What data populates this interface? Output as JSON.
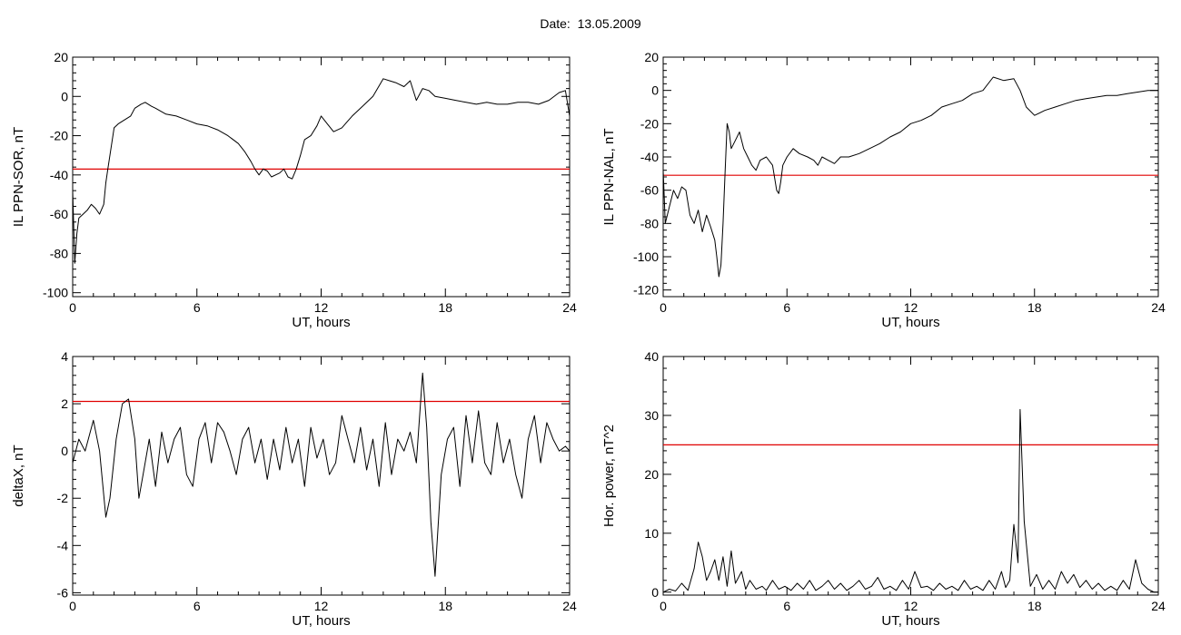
{
  "figure": {
    "title": "Date:  13.05.2009"
  },
  "colors": {
    "trace": "#000000",
    "threshold": "#e00000",
    "segment": "#1f5fd0",
    "marker_green": "#22cc22",
    "marker_red": "#dd0000",
    "marker_blue": "#2255dd"
  },
  "chart_data": [
    {
      "type": "line",
      "xlabel": "UT, hours",
      "ylabel": "IL PPN-SOR, nT",
      "xlim": [
        0,
        24
      ],
      "ylim": [
        -102,
        20
      ],
      "xticks": [
        0,
        6,
        12,
        18,
        24
      ],
      "yticks": [
        -100,
        -80,
        -60,
        -40,
        -20,
        0,
        20
      ],
      "threshold": -37,
      "series": [
        {
          "x": [
            0,
            0.1,
            0.2,
            0.3,
            0.5,
            0.7,
            0.9,
            1.1,
            1.3,
            1.5,
            1.6,
            1.7,
            1.8,
            2.0,
            2.2,
            2.5,
            2.8,
            3.0,
            3.3,
            3.5,
            3.8,
            4.0,
            4.5,
            5.0,
            5.5,
            6.0,
            6.5,
            7.0,
            7.5,
            8.0,
            8.3,
            8.6,
            8.8,
            9.0,
            9.2,
            9.4,
            9.6,
            9.8,
            10.0,
            10.2,
            10.4,
            10.6,
            10.8,
            11.0,
            11.2,
            11.5,
            11.8,
            12.0,
            12.3,
            12.6,
            13.0,
            13.5,
            14.0,
            14.5,
            15.0,
            15.3,
            15.6,
            16.0,
            16.3,
            16.6,
            16.9,
            17.2,
            17.5,
            18.0,
            18.5,
            19.0,
            19.5,
            20.0,
            20.5,
            21.0,
            21.5,
            22.0,
            22.5,
            23.0,
            23.5,
            23.8,
            24.0
          ],
          "y": [
            -48,
            -85,
            -70,
            -62,
            -60,
            -58,
            -55,
            -57,
            -60,
            -55,
            -44,
            -37,
            -30,
            -16,
            -14,
            -12,
            -10,
            -6,
            -4,
            -3,
            -5,
            -6,
            -9,
            -10,
            -12,
            -14,
            -15,
            -17,
            -20,
            -24,
            -28,
            -33,
            -37,
            -40,
            -37,
            -38,
            -41,
            -40,
            -39,
            -37,
            -41,
            -42,
            -37,
            -30,
            -22,
            -20,
            -15,
            -10,
            -14,
            -18,
            -16,
            -10,
            -5,
            0,
            9,
            8,
            7,
            5,
            8,
            -2,
            4,
            3,
            0,
            -1,
            -2,
            -3,
            -4,
            -3,
            -4,
            -4,
            -3,
            -3,
            -4,
            -2,
            2,
            3,
            -10
          ]
        }
      ]
    },
    {
      "type": "line",
      "xlabel": "UT, hours",
      "ylabel": "IL PPN-NAL, nT",
      "xlim": [
        0,
        24
      ],
      "ylim": [
        -124,
        20
      ],
      "xticks": [
        0,
        6,
        12,
        18,
        24
      ],
      "yticks": [
        -120,
        -100,
        -80,
        -60,
        -40,
        -20,
        0,
        20
      ],
      "threshold": -51,
      "series": [
        {
          "x": [
            0,
            0.1,
            0.3,
            0.5,
            0.7,
            0.9,
            1.1,
            1.3,
            1.5,
            1.7,
            1.9,
            2.1,
            2.3,
            2.5,
            2.6,
            2.7,
            2.8,
            2.9,
            3.0,
            3.1,
            3.2,
            3.3,
            3.5,
            3.7,
            3.9,
            4.1,
            4.3,
            4.5,
            4.7,
            5.0,
            5.3,
            5.5,
            5.6,
            5.7,
            5.8,
            6.0,
            6.3,
            6.6,
            7.0,
            7.3,
            7.5,
            7.7,
            8.0,
            8.3,
            8.6,
            9.0,
            9.5,
            10.0,
            10.5,
            11.0,
            11.5,
            12.0,
            12.5,
            13.0,
            13.5,
            14.0,
            14.5,
            15.0,
            15.5,
            16.0,
            16.5,
            17.0,
            17.3,
            17.6,
            18.0,
            18.5,
            19.0,
            19.5,
            20.0,
            20.5,
            21.0,
            21.5,
            22.0,
            22.5,
            23.0,
            23.5,
            24.0
          ],
          "y": [
            -48,
            -80,
            -70,
            -60,
            -65,
            -58,
            -60,
            -75,
            -80,
            -72,
            -85,
            -75,
            -82,
            -90,
            -100,
            -112,
            -105,
            -80,
            -50,
            -20,
            -25,
            -35,
            -30,
            -25,
            -35,
            -40,
            -45,
            -48,
            -42,
            -40,
            -45,
            -60,
            -62,
            -55,
            -45,
            -40,
            -35,
            -38,
            -40,
            -42,
            -45,
            -40,
            -42,
            -44,
            -40,
            -40,
            -38,
            -35,
            -32,
            -28,
            -25,
            -20,
            -18,
            -15,
            -10,
            -8,
            -6,
            -2,
            0,
            8,
            6,
            7,
            0,
            -10,
            -15,
            -12,
            -10,
            -8,
            -6,
            -5,
            -4,
            -3,
            -3,
            -2,
            -1,
            0,
            0
          ]
        }
      ]
    },
    {
      "type": "line",
      "xlabel": "UT, hours",
      "ylabel": "deltaX, nT",
      "xlim": [
        0,
        24
      ],
      "ylim": [
        -6.1,
        4
      ],
      "xticks": [
        0,
        6,
        12,
        18,
        24
      ],
      "yticks": [
        -6,
        -4,
        -2,
        0,
        2,
        4
      ],
      "threshold": 2.1,
      "series": [
        {
          "x": [
            0,
            0.3,
            0.6,
            1.0,
            1.3,
            1.6,
            1.8,
            2.1,
            2.4,
            2.7,
            3.0,
            3.2,
            3.4,
            3.7,
            4.0,
            4.3,
            4.6,
            4.9,
            5.2,
            5.5,
            5.8,
            6.1,
            6.4,
            6.7,
            7.0,
            7.3,
            7.6,
            7.9,
            8.2,
            8.5,
            8.8,
            9.1,
            9.4,
            9.7,
            10.0,
            10.3,
            10.6,
            10.9,
            11.2,
            11.5,
            11.8,
            12.1,
            12.4,
            12.7,
            13.0,
            13.3,
            13.6,
            13.9,
            14.2,
            14.5,
            14.8,
            15.1,
            15.4,
            15.7,
            16.0,
            16.3,
            16.6,
            16.9,
            17.1,
            17.3,
            17.5,
            17.8,
            18.1,
            18.4,
            18.7,
            19.0,
            19.3,
            19.6,
            19.9,
            20.2,
            20.5,
            20.8,
            21.1,
            21.4,
            21.7,
            22.0,
            22.3,
            22.6,
            22.9,
            23.2,
            23.5,
            23.8,
            24.0
          ],
          "y": [
            -0.5,
            0.5,
            0,
            1.3,
            0,
            -2.8,
            -2.0,
            0.5,
            2.0,
            2.2,
            0.5,
            -2.0,
            -1.0,
            0.5,
            -1.5,
            0.8,
            -0.5,
            0.5,
            1.0,
            -1.0,
            -1.5,
            0.5,
            1.2,
            -0.5,
            1.2,
            0.8,
            0,
            -1.0,
            0.5,
            1.0,
            -0.5,
            0.5,
            -1.2,
            0.5,
            -0.8,
            1.0,
            -0.5,
            0.5,
            -1.5,
            1.0,
            -0.3,
            0.5,
            -1.0,
            -0.5,
            1.5,
            0.5,
            -0.5,
            1.0,
            -0.8,
            0.5,
            -1.5,
            1.2,
            -1.0,
            0.5,
            0.0,
            0.8,
            -0.5,
            3.3,
            1.0,
            -3.0,
            -5.3,
            -1.0,
            0.5,
            1.0,
            -1.5,
            1.5,
            -0.5,
            1.7,
            -0.5,
            -1.0,
            1.2,
            -0.5,
            0.5,
            -1.0,
            -2.0,
            0.5,
            1.5,
            -0.5,
            1.2,
            0.5,
            0.0,
            0.2,
            0.0
          ]
        }
      ]
    },
    {
      "type": "line",
      "xlabel": "UT, hours",
      "ylabel": "Hor. power, nT^2",
      "xlim": [
        0,
        24
      ],
      "ylim": [
        -0.5,
        40
      ],
      "xticks": [
        0,
        6,
        12,
        18,
        24
      ],
      "yticks": [
        0,
        10,
        20,
        30,
        40
      ],
      "threshold": 25,
      "series": [
        {
          "x": [
            0,
            0.3,
            0.6,
            0.9,
            1.2,
            1.5,
            1.7,
            1.9,
            2.1,
            2.3,
            2.5,
            2.7,
            2.9,
            3.1,
            3.3,
            3.5,
            3.8,
            4.0,
            4.2,
            4.5,
            4.8,
            5.0,
            5.3,
            5.6,
            5.9,
            6.2,
            6.5,
            6.8,
            7.1,
            7.4,
            7.7,
            8.0,
            8.3,
            8.6,
            8.9,
            9.2,
            9.5,
            9.8,
            10.1,
            10.4,
            10.7,
            11.0,
            11.3,
            11.6,
            11.9,
            12.2,
            12.5,
            12.8,
            13.1,
            13.4,
            13.7,
            14.0,
            14.3,
            14.6,
            14.9,
            15.2,
            15.5,
            15.8,
            16.1,
            16.4,
            16.6,
            16.8,
            17.0,
            17.2,
            17.3,
            17.5,
            17.8,
            18.1,
            18.4,
            18.7,
            19.0,
            19.3,
            19.6,
            19.9,
            20.2,
            20.5,
            20.8,
            21.1,
            21.4,
            21.7,
            22.0,
            22.3,
            22.6,
            22.9,
            23.2,
            23.5,
            23.8,
            24.0
          ],
          "y": [
            0,
            0.5,
            0.2,
            1.5,
            0.3,
            4.0,
            8.5,
            6.0,
            2.0,
            3.5,
            5.5,
            2.0,
            6.0,
            1.0,
            7.0,
            1.5,
            3.5,
            0.5,
            2.0,
            0.5,
            1.0,
            0.3,
            2.0,
            0.5,
            1.0,
            0.3,
            1.5,
            0.5,
            2.0,
            0.3,
            1.0,
            2.0,
            0.5,
            1.5,
            0.3,
            1.0,
            2.0,
            0.5,
            1.0,
            2.5,
            0.5,
            1.0,
            0.3,
            2.0,
            0.5,
            3.5,
            0.8,
            1.0,
            0.3,
            1.5,
            0.5,
            1.0,
            0.3,
            2.0,
            0.5,
            1.0,
            0.3,
            2.0,
            0.5,
            3.5,
            0.8,
            2.0,
            11.5,
            5.0,
            31.0,
            12.0,
            1.0,
            3.0,
            0.5,
            2.0,
            0.5,
            3.5,
            1.5,
            3.0,
            0.8,
            2.0,
            0.5,
            1.5,
            0.3,
            1.0,
            0.3,
            2.0,
            0.5,
            5.5,
            1.5,
            0.5,
            0.0,
            0.0
          ]
        }
      ]
    }
  ]
}
